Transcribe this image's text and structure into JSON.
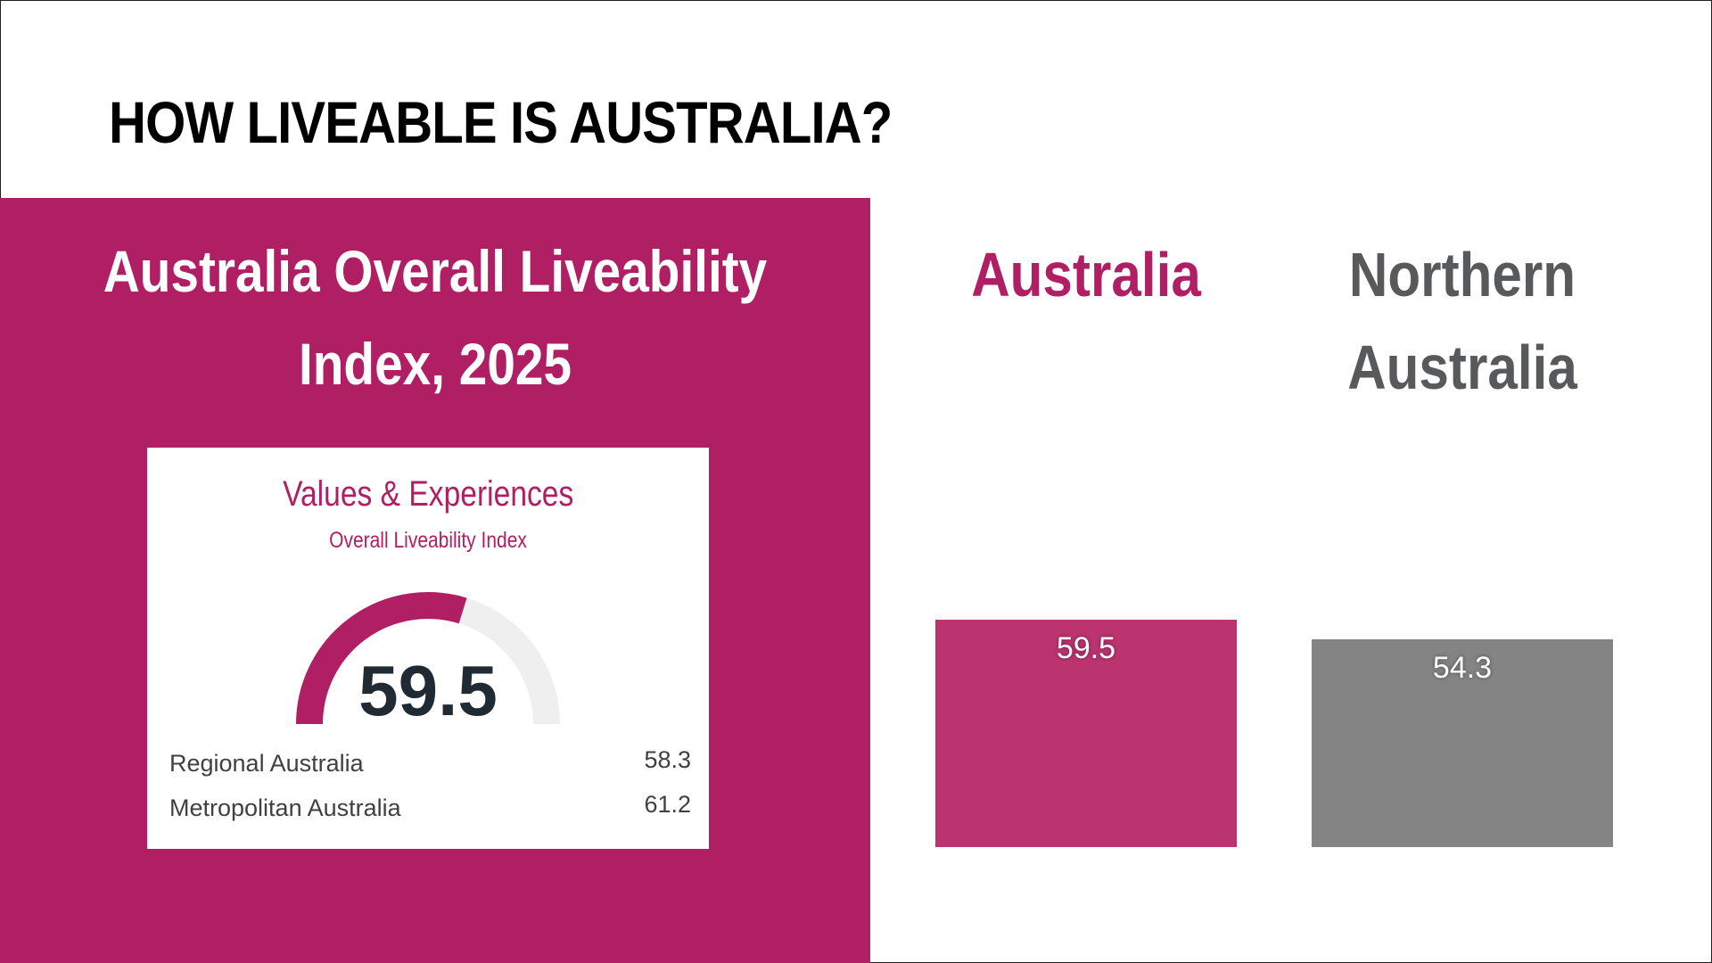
{
  "page": {
    "title": "HOW LIVEABLE IS AUSTRALIA?"
  },
  "colors": {
    "accent": "#B01E63",
    "accent_light": "#BB3470",
    "gray_bar": "#848484",
    "gray_text": "#58595B",
    "gauge_track": "#EFEFEF"
  },
  "panel": {
    "heading_line1": "Australia Overall Liveability",
    "heading_line2": "Index, 2025",
    "card": {
      "title": "Values & Experiences",
      "subtitle": "Overall Liveability Index",
      "gauge_value": "59.5",
      "gauge_fraction": 0.595,
      "rows": [
        {
          "label": "Regional Australia",
          "value": "58.3"
        },
        {
          "label": "Metropolitan Australia",
          "value": "61.2"
        }
      ]
    }
  },
  "chart_data": {
    "type": "bar",
    "categories": [
      "Australia",
      "Northern Australia"
    ],
    "category_lines": [
      [
        "Australia"
      ],
      [
        "Northern",
        "Australia"
      ]
    ],
    "values": [
      59.5,
      54.3
    ],
    "value_labels": [
      "59.5",
      "54.3"
    ],
    "colors": [
      "#BB3470",
      "#848484"
    ],
    "label_colors": [
      "#B01E63",
      "#58595B"
    ],
    "title": "",
    "xlabel": "",
    "ylabel": "",
    "grid": false
  }
}
